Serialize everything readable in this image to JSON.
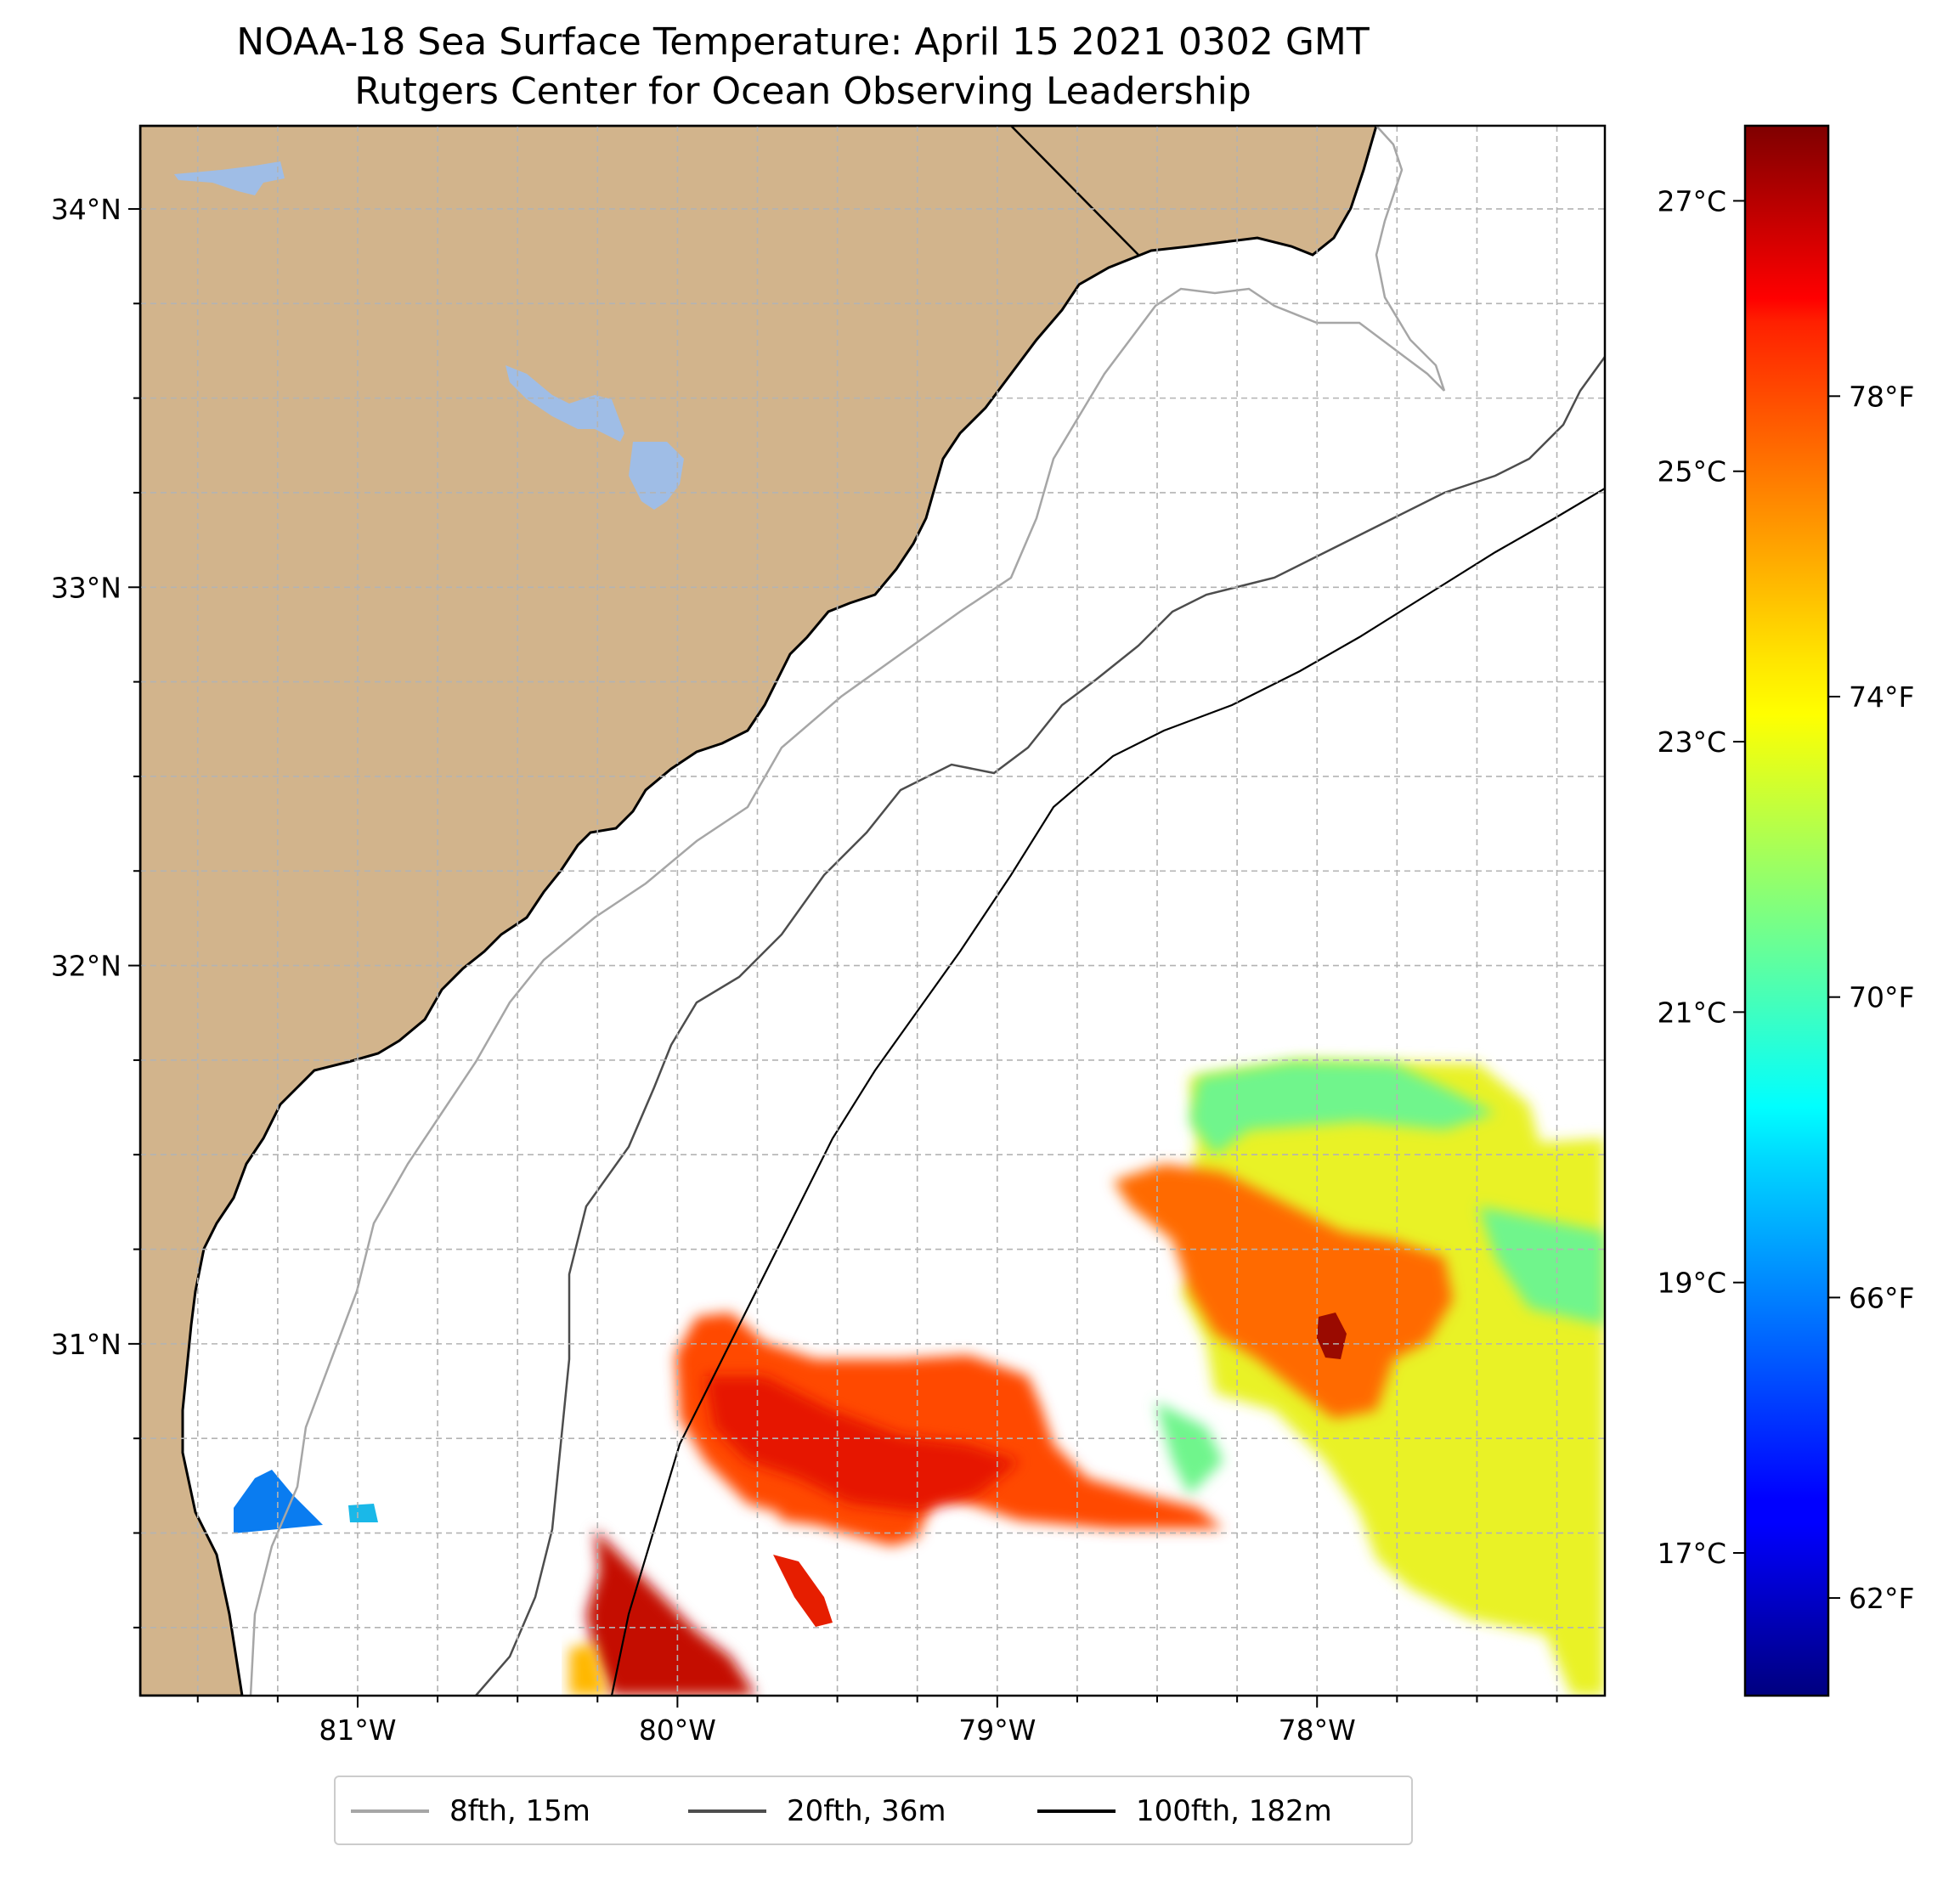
{
  "title": {
    "line1": "NOAA-18 Sea Surface Temperature: April 15 2021 0302 GMT",
    "line2": "Rutgers Center for Ocean Observing Leadership"
  },
  "map": {
    "lon_range": [
      -81.68,
      -77.1
    ],
    "lat_range": [
      30.07,
      34.22
    ],
    "x_ticks": [
      {
        "value": -81,
        "label": "81°W"
      },
      {
        "value": -80,
        "label": "80°W"
      },
      {
        "value": -79,
        "label": "79°W"
      },
      {
        "value": -78,
        "label": "78°W"
      }
    ],
    "y_ticks": [
      {
        "value": 34,
        "label": "34°N"
      },
      {
        "value": 33,
        "label": "33°N"
      },
      {
        "value": 32,
        "label": "32°N"
      },
      {
        "value": 31,
        "label": "31°N"
      }
    ],
    "grid": "dashed, every 0.25°",
    "colors": {
      "land": "#d2b48c",
      "lakes": "#9fbde6",
      "ocean": "#ffffff"
    }
  },
  "colorbar": {
    "colormap": "jet",
    "celsius_ticks": [
      {
        "value": 17,
        "label": "17°C"
      },
      {
        "value": 19,
        "label": "19°C"
      },
      {
        "value": 21,
        "label": "21°C"
      },
      {
        "value": 23,
        "label": "23°C"
      },
      {
        "value": 25,
        "label": "25°C"
      },
      {
        "value": 27,
        "label": "27°C"
      }
    ],
    "fahrenheit_ticks": [
      {
        "value": 62,
        "label": "62°F"
      },
      {
        "value": 66,
        "label": "66°F"
      },
      {
        "value": 70,
        "label": "70°F"
      },
      {
        "value": 74,
        "label": "74°F"
      },
      {
        "value": 78,
        "label": "78°F"
      }
    ],
    "range_f": [
      60.7,
      81.6
    ]
  },
  "legend": [
    {
      "label": "8fth, 15m",
      "color": "#a6a6a6"
    },
    {
      "label": "20fth, 36m",
      "color": "#4d4d4d"
    },
    {
      "label": "100fth, 182m",
      "color": "#000000"
    }
  ]
}
